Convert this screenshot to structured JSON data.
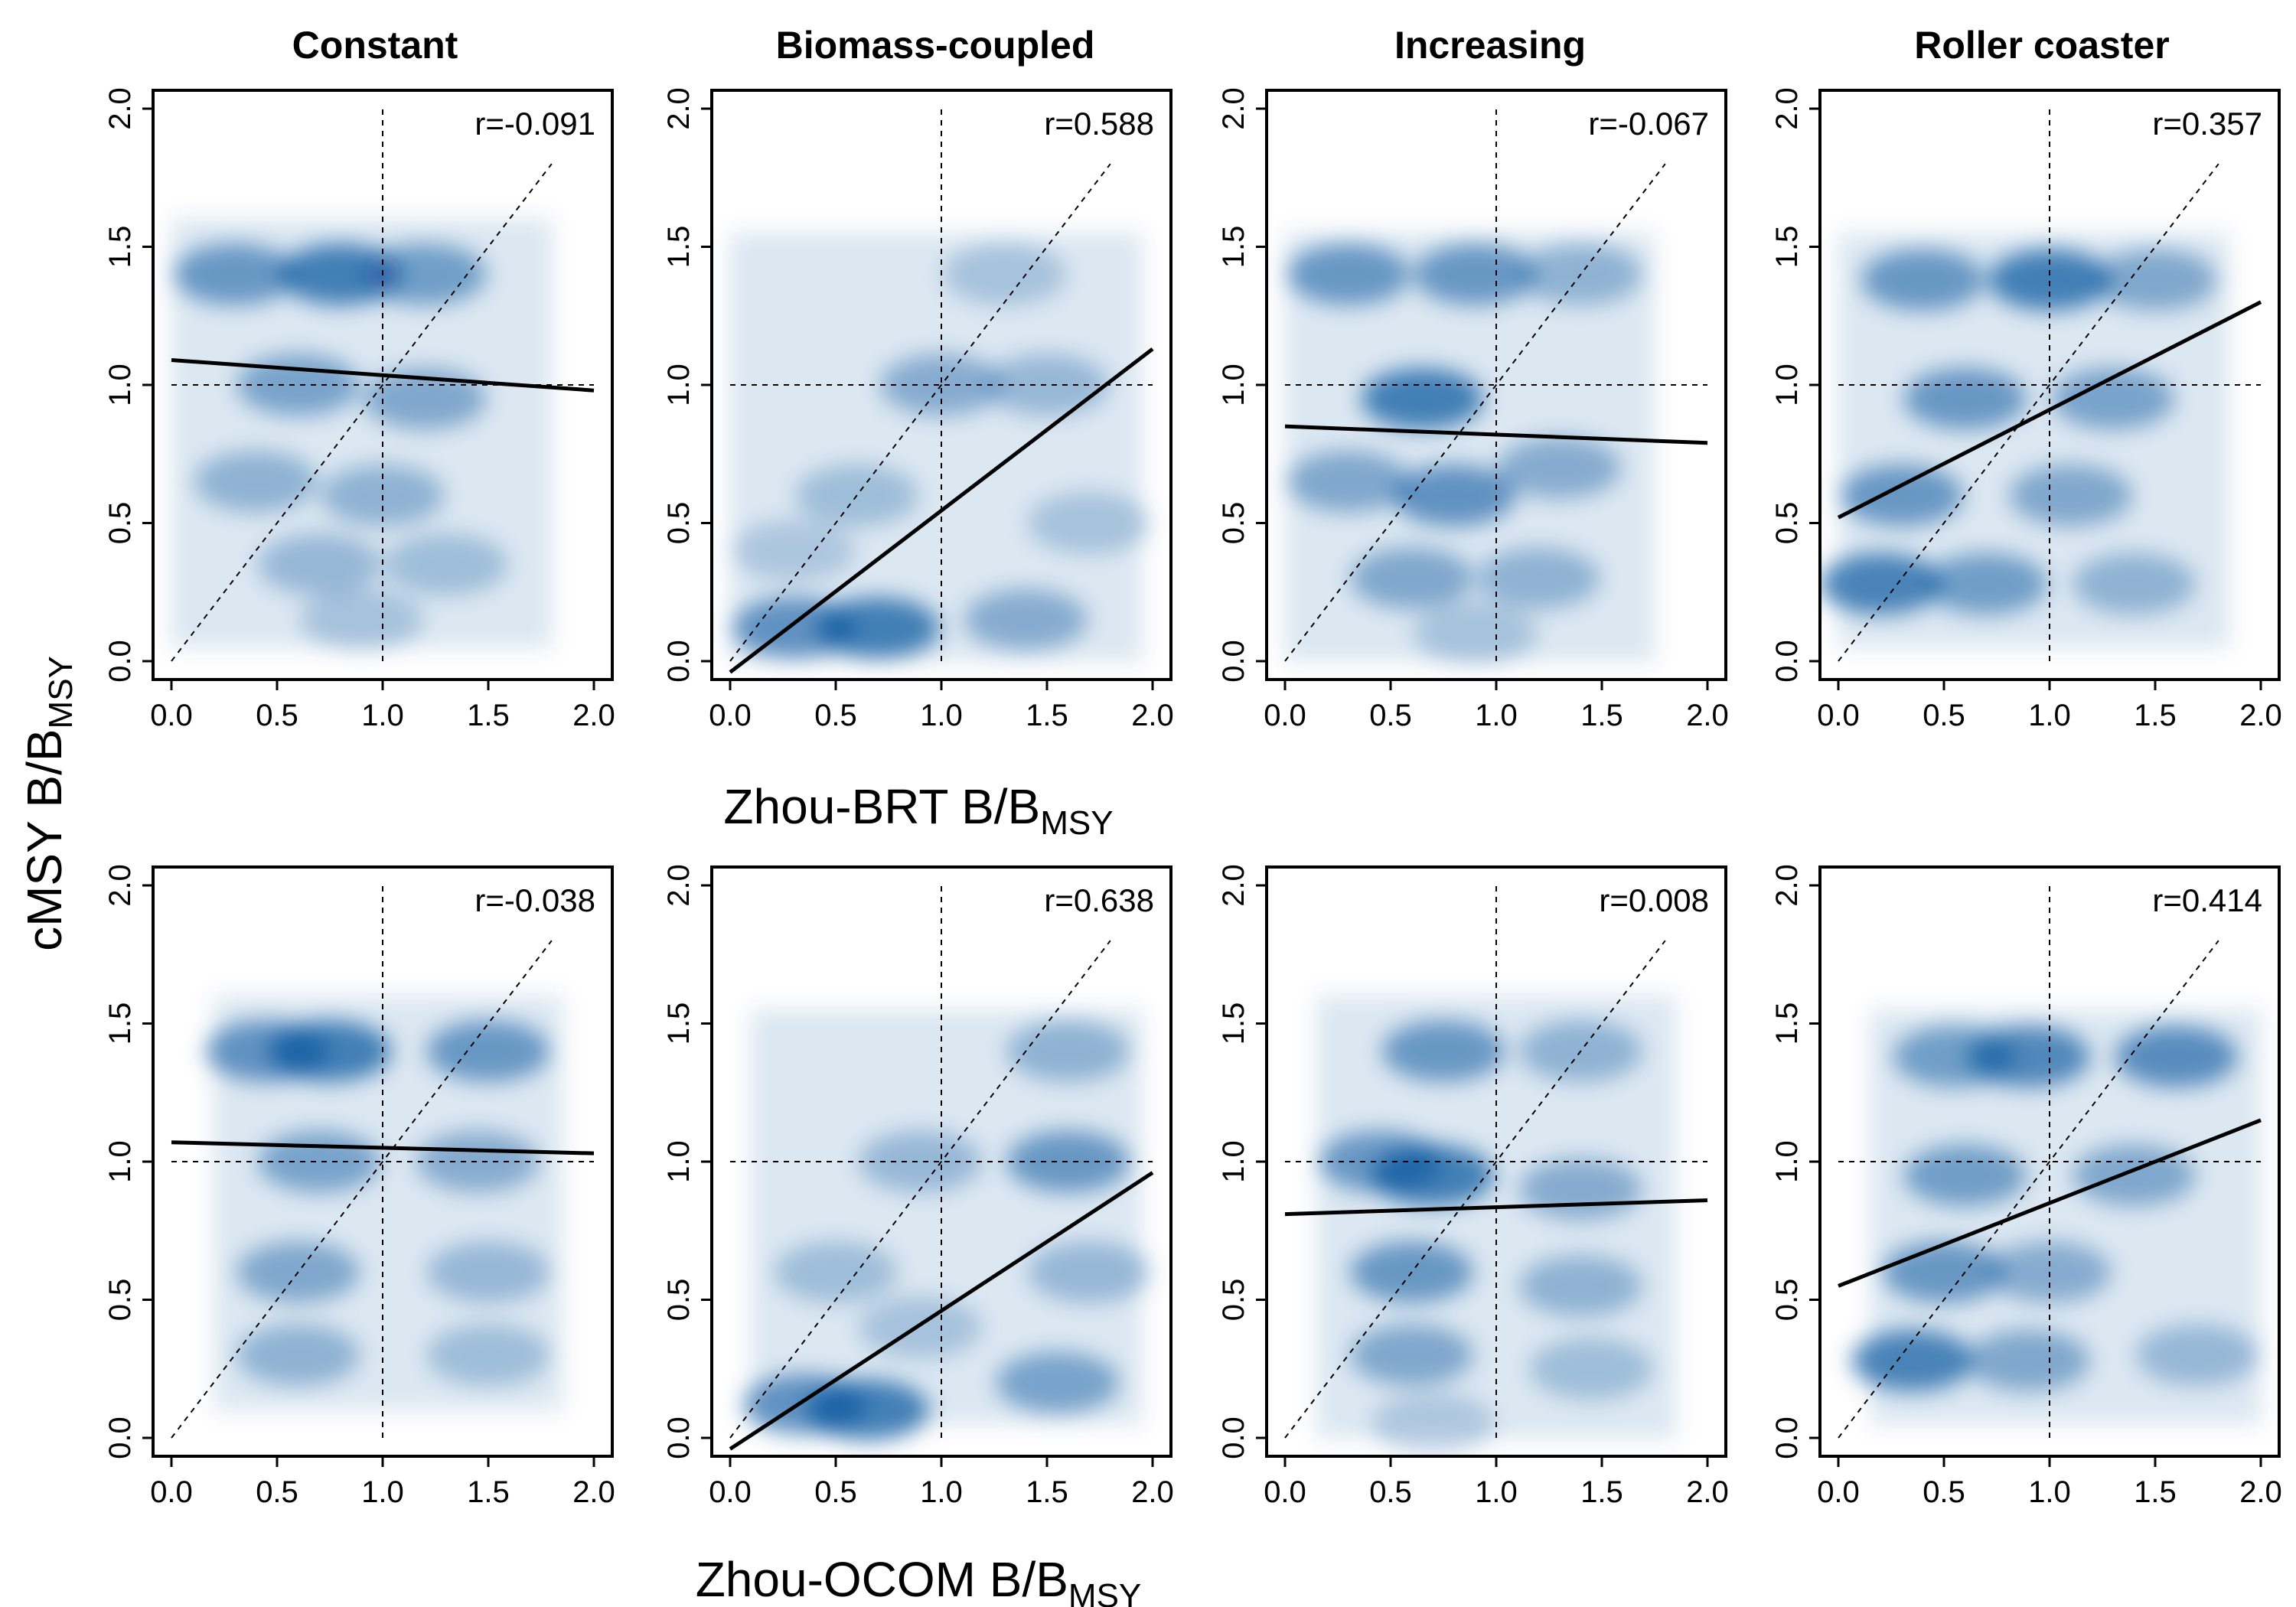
{
  "figure": {
    "column_titles": [
      "Constant",
      "Biomass-coupled",
      "Increasing",
      "Roller coaster"
    ],
    "ylabel": {
      "main": "cMSY B/B",
      "sub": "MSY"
    },
    "row_xlabels": [
      {
        "main": "Zhou-BRT B/B",
        "sub": "MSY"
      },
      {
        "main": "Zhou-OCOM B/B",
        "sub": "MSY"
      }
    ],
    "density_color": "#08519c"
  },
  "chart_data": [
    {
      "type": "scatter",
      "row": 0,
      "col": 0,
      "title": "Constant",
      "xlabel": "Zhou-BRT B/BMSY",
      "ylabel": "cMSY B/BMSY",
      "xlim": [
        0,
        2
      ],
      "ylim": [
        0,
        2
      ],
      "xticks": [
        "0.0",
        "0.5",
        "1.0",
        "1.5",
        "2.0"
      ],
      "yticks": [
        "0.0",
        "0.5",
        "1.0",
        "1.5",
        "2.0"
      ],
      "annotation": "r=-0.091",
      "fit_line": {
        "x": [
          0,
          2
        ],
        "y": [
          1.09,
          0.98
        ]
      },
      "reference_lines": {
        "vertical_x": 1,
        "horizontal_y": 1,
        "identity": true
      },
      "density_extent": {
        "x": [
          0,
          1.8
        ],
        "y": [
          0.05,
          1.6
        ]
      },
      "density_hotspots": [
        {
          "x": 0.8,
          "y": 1.4,
          "w": 1.0
        },
        {
          "x": 0.3,
          "y": 1.4,
          "w": 0.75
        },
        {
          "x": 1.2,
          "y": 1.4,
          "w": 0.7
        },
        {
          "x": 0.6,
          "y": 1.0,
          "w": 0.65
        },
        {
          "x": 1.2,
          "y": 0.95,
          "w": 0.6
        },
        {
          "x": 0.4,
          "y": 0.65,
          "w": 0.5
        },
        {
          "x": 1.0,
          "y": 0.6,
          "w": 0.5
        },
        {
          "x": 0.7,
          "y": 0.35,
          "w": 0.45
        },
        {
          "x": 1.3,
          "y": 0.35,
          "w": 0.4
        },
        {
          "x": 0.9,
          "y": 0.15,
          "w": 0.35
        }
      ]
    },
    {
      "type": "scatter",
      "row": 0,
      "col": 1,
      "title": "Biomass-coupled",
      "xlabel": "Zhou-BRT B/BMSY",
      "ylabel": "cMSY B/BMSY",
      "xlim": [
        0,
        2
      ],
      "ylim": [
        0,
        2
      ],
      "xticks": [
        "0.0",
        "0.5",
        "1.0",
        "1.5",
        "2.0"
      ],
      "yticks": [
        "0.0",
        "0.5",
        "1.0",
        "1.5",
        "2.0"
      ],
      "annotation": "r=0.588",
      "fit_line": {
        "x": [
          0,
          2
        ],
        "y": [
          -0.04,
          1.13
        ]
      },
      "reference_lines": {
        "vertical_x": 1,
        "horizontal_y": 1,
        "identity": true
      },
      "density_extent": {
        "x": [
          0,
          1.95
        ],
        "y": [
          0,
          1.55
        ]
      },
      "density_hotspots": [
        {
          "x": 0.7,
          "y": 0.12,
          "w": 1.0
        },
        {
          "x": 0.3,
          "y": 0.12,
          "w": 0.8
        },
        {
          "x": 1.4,
          "y": 0.15,
          "w": 0.55
        },
        {
          "x": 1.0,
          "y": 1.0,
          "w": 0.55
        },
        {
          "x": 1.5,
          "y": 1.0,
          "w": 0.45
        },
        {
          "x": 0.6,
          "y": 0.6,
          "w": 0.4
        },
        {
          "x": 1.3,
          "y": 1.4,
          "w": 0.35
        },
        {
          "x": 1.7,
          "y": 0.5,
          "w": 0.35
        },
        {
          "x": 0.3,
          "y": 0.4,
          "w": 0.3
        }
      ]
    },
    {
      "type": "scatter",
      "row": 0,
      "col": 2,
      "title": "Increasing",
      "xlabel": "Zhou-BRT B/BMSY",
      "ylabel": "cMSY B/BMSY",
      "xlim": [
        0,
        2
      ],
      "ylim": [
        0,
        2
      ],
      "xticks": [
        "0.0",
        "0.5",
        "1.0",
        "1.5",
        "2.0"
      ],
      "yticks": [
        "0.0",
        "0.5",
        "1.0",
        "1.5",
        "2.0"
      ],
      "annotation": "r=-0.067",
      "fit_line": {
        "x": [
          0,
          2
        ],
        "y": [
          0.85,
          0.79
        ]
      },
      "reference_lines": {
        "vertical_x": 1,
        "horizontal_y": 1,
        "identity": true
      },
      "density_extent": {
        "x": [
          0,
          1.75
        ],
        "y": [
          0,
          1.55
        ]
      },
      "density_hotspots": [
        {
          "x": 0.65,
          "y": 0.95,
          "w": 1.0
        },
        {
          "x": 0.3,
          "y": 1.4,
          "w": 0.75
        },
        {
          "x": 0.9,
          "y": 1.4,
          "w": 0.75
        },
        {
          "x": 1.4,
          "y": 1.4,
          "w": 0.5
        },
        {
          "x": 0.8,
          "y": 0.6,
          "w": 0.8
        },
        {
          "x": 0.3,
          "y": 0.65,
          "w": 0.6
        },
        {
          "x": 1.3,
          "y": 0.7,
          "w": 0.55
        },
        {
          "x": 0.6,
          "y": 0.3,
          "w": 0.6
        },
        {
          "x": 1.2,
          "y": 0.3,
          "w": 0.5
        },
        {
          "x": 0.9,
          "y": 0.1,
          "w": 0.35
        }
      ]
    },
    {
      "type": "scatter",
      "row": 0,
      "col": 3,
      "title": "Roller coaster",
      "xlabel": "Zhou-BRT B/BMSY",
      "ylabel": "cMSY B/BMSY",
      "xlim": [
        0,
        2
      ],
      "ylim": [
        0,
        2
      ],
      "xticks": [
        "0.0",
        "0.5",
        "1.0",
        "1.5",
        "2.0"
      ],
      "yticks": [
        "0.0",
        "0.5",
        "1.0",
        "1.5",
        "2.0"
      ],
      "annotation": "r=0.357",
      "fit_line": {
        "x": [
          0,
          2
        ],
        "y": [
          0.52,
          1.3
        ]
      },
      "reference_lines": {
        "vertical_x": 1,
        "horizontal_y": 1,
        "identity": true
      },
      "density_extent": {
        "x": [
          0,
          1.85
        ],
        "y": [
          0.05,
          1.55
        ]
      },
      "density_hotspots": [
        {
          "x": 1.0,
          "y": 1.38,
          "w": 1.0
        },
        {
          "x": 0.4,
          "y": 1.38,
          "w": 0.75
        },
        {
          "x": 1.5,
          "y": 1.38,
          "w": 0.6
        },
        {
          "x": 0.6,
          "y": 0.95,
          "w": 0.75
        },
        {
          "x": 1.3,
          "y": 0.95,
          "w": 0.65
        },
        {
          "x": 0.3,
          "y": 0.6,
          "w": 0.75
        },
        {
          "x": 1.1,
          "y": 0.6,
          "w": 0.6
        },
        {
          "x": 0.2,
          "y": 0.28,
          "w": 0.95
        },
        {
          "x": 0.7,
          "y": 0.28,
          "w": 0.7
        },
        {
          "x": 1.4,
          "y": 0.28,
          "w": 0.5
        }
      ]
    },
    {
      "type": "scatter",
      "row": 1,
      "col": 0,
      "title": "Constant",
      "xlabel": "Zhou-OCOM B/BMSY",
      "ylabel": "cMSY B/BMSY",
      "xlim": [
        0,
        2
      ],
      "ylim": [
        0,
        2
      ],
      "xticks": [
        "0.0",
        "0.5",
        "1.0",
        "1.5",
        "2.0"
      ],
      "yticks": [
        "0.0",
        "0.5",
        "1.0",
        "1.5",
        "2.0"
      ],
      "annotation": "r=-0.038",
      "fit_line": {
        "x": [
          0,
          2
        ],
        "y": [
          1.07,
          1.03
        ]
      },
      "reference_lines": {
        "vertical_x": 1,
        "horizontal_y": 1,
        "identity": true
      },
      "density_extent": {
        "x": [
          0.2,
          1.85
        ],
        "y": [
          0.1,
          1.6
        ]
      },
      "density_hotspots": [
        {
          "x": 0.75,
          "y": 1.4,
          "w": 1.0
        },
        {
          "x": 0.45,
          "y": 1.4,
          "w": 0.8
        },
        {
          "x": 1.5,
          "y": 1.4,
          "w": 0.75
        },
        {
          "x": 0.7,
          "y": 1.0,
          "w": 0.65
        },
        {
          "x": 1.45,
          "y": 1.0,
          "w": 0.55
        },
        {
          "x": 0.6,
          "y": 0.6,
          "w": 0.6
        },
        {
          "x": 1.5,
          "y": 0.6,
          "w": 0.45
        },
        {
          "x": 0.6,
          "y": 0.3,
          "w": 0.5
        },
        {
          "x": 1.5,
          "y": 0.3,
          "w": 0.4
        }
      ]
    },
    {
      "type": "scatter",
      "row": 1,
      "col": 1,
      "title": "Biomass-coupled",
      "xlabel": "Zhou-OCOM B/BMSY",
      "ylabel": "cMSY B/BMSY",
      "xlim": [
        0,
        2
      ],
      "ylim": [
        0,
        2
      ],
      "xticks": [
        "0.0",
        "0.5",
        "1.0",
        "1.5",
        "2.0"
      ],
      "yticks": [
        "0.0",
        "0.5",
        "1.0",
        "1.5",
        "2.0"
      ],
      "annotation": "r=0.638",
      "fit_line": {
        "x": [
          0,
          2
        ],
        "y": [
          -0.04,
          0.96
        ]
      },
      "reference_lines": {
        "vertical_x": 1,
        "horizontal_y": 1,
        "identity": true
      },
      "density_extent": {
        "x": [
          0.1,
          1.95
        ],
        "y": [
          0.05,
          1.55
        ]
      },
      "density_hotspots": [
        {
          "x": 0.65,
          "y": 0.1,
          "w": 1.0
        },
        {
          "x": 0.35,
          "y": 0.12,
          "w": 0.8
        },
        {
          "x": 1.55,
          "y": 0.2,
          "w": 0.65
        },
        {
          "x": 1.6,
          "y": 1.0,
          "w": 0.75
        },
        {
          "x": 1.6,
          "y": 1.4,
          "w": 0.5
        },
        {
          "x": 0.9,
          "y": 1.0,
          "w": 0.45
        },
        {
          "x": 0.5,
          "y": 0.6,
          "w": 0.4
        },
        {
          "x": 1.7,
          "y": 0.6,
          "w": 0.45
        },
        {
          "x": 0.9,
          "y": 0.4,
          "w": 0.35
        }
      ]
    },
    {
      "type": "scatter",
      "row": 1,
      "col": 2,
      "title": "Increasing",
      "xlabel": "Zhou-OCOM B/BMSY",
      "ylabel": "cMSY B/BMSY",
      "xlim": [
        0,
        2
      ],
      "ylim": [
        0,
        2
      ],
      "xticks": [
        "0.0",
        "0.5",
        "1.0",
        "1.5",
        "2.0"
      ],
      "yticks": [
        "0.0",
        "0.5",
        "1.0",
        "1.5",
        "2.0"
      ],
      "annotation": "r=0.008",
      "fit_line": {
        "x": [
          0,
          2
        ],
        "y": [
          0.81,
          0.86
        ]
      },
      "reference_lines": {
        "vertical_x": 1,
        "horizontal_y": 1,
        "identity": true
      },
      "density_extent": {
        "x": [
          0.15,
          1.85
        ],
        "y": [
          0,
          1.6
        ]
      },
      "density_hotspots": [
        {
          "x": 0.7,
          "y": 0.95,
          "w": 1.0
        },
        {
          "x": 0.45,
          "y": 1.0,
          "w": 0.75
        },
        {
          "x": 0.75,
          "y": 1.4,
          "w": 0.75
        },
        {
          "x": 1.4,
          "y": 1.4,
          "w": 0.5
        },
        {
          "x": 0.6,
          "y": 0.6,
          "w": 0.75
        },
        {
          "x": 1.4,
          "y": 0.9,
          "w": 0.55
        },
        {
          "x": 1.4,
          "y": 0.55,
          "w": 0.5
        },
        {
          "x": 0.6,
          "y": 0.3,
          "w": 0.6
        },
        {
          "x": 1.45,
          "y": 0.25,
          "w": 0.4
        },
        {
          "x": 0.7,
          "y": 0.05,
          "w": 0.3
        }
      ]
    },
    {
      "type": "scatter",
      "row": 1,
      "col": 3,
      "title": "Roller coaster",
      "xlabel": "Zhou-OCOM B/BMSY",
      "ylabel": "cMSY B/BMSY",
      "xlim": [
        0,
        2
      ],
      "ylim": [
        0,
        2
      ],
      "xticks": [
        "0.0",
        "0.5",
        "1.0",
        "1.5",
        "2.0"
      ],
      "yticks": [
        "0.0",
        "0.5",
        "1.0",
        "1.5",
        "2.0"
      ],
      "annotation": "r=0.414",
      "fit_line": {
        "x": [
          0,
          2
        ],
        "y": [
          0.55,
          1.15
        ]
      },
      "reference_lines": {
        "vertical_x": 1,
        "horizontal_y": 1,
        "identity": true
      },
      "density_extent": {
        "x": [
          0.15,
          2.0
        ],
        "y": [
          0.05,
          1.55
        ]
      },
      "density_hotspots": [
        {
          "x": 0.9,
          "y": 1.38,
          "w": 0.9
        },
        {
          "x": 0.55,
          "y": 1.38,
          "w": 0.7
        },
        {
          "x": 1.6,
          "y": 1.38,
          "w": 0.85
        },
        {
          "x": 0.6,
          "y": 0.95,
          "w": 0.7
        },
        {
          "x": 1.4,
          "y": 0.95,
          "w": 0.6
        },
        {
          "x": 0.5,
          "y": 0.6,
          "w": 0.75
        },
        {
          "x": 1.0,
          "y": 0.6,
          "w": 0.55
        },
        {
          "x": 0.35,
          "y": 0.28,
          "w": 0.95
        },
        {
          "x": 0.9,
          "y": 0.28,
          "w": 0.6
        },
        {
          "x": 1.7,
          "y": 0.3,
          "w": 0.45
        }
      ]
    }
  ]
}
